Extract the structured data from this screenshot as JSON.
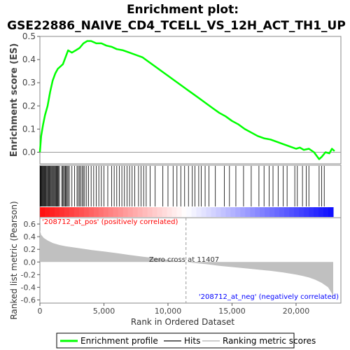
{
  "chart_data": {
    "type": "line",
    "title_line1": "Enrichment plot:",
    "title_line2": "GSE22886_NAIVE_CD4_TCELL_VS_12H_ACT_TH1_UP",
    "es_panel": {
      "ylabel": "Enrichment score (ES)",
      "ylim": [
        -0.05,
        0.5
      ],
      "yticks": [
        "0.0",
        "0.1",
        "0.2",
        "0.3",
        "0.4",
        "0.5"
      ],
      "series_name": "Enrichment profile",
      "color": "#00ff00",
      "x": [
        0,
        100,
        250,
        400,
        600,
        800,
        1000,
        1200,
        1400,
        1600,
        1800,
        2000,
        2200,
        2500,
        2800,
        3100,
        3400,
        3700,
        4000,
        4400,
        4800,
        5200,
        5600,
        6000,
        6500,
        7000,
        7500,
        8000,
        8500,
        9000,
        9500,
        10000,
        10500,
        11000,
        11500,
        12000,
        12500,
        13000,
        13500,
        14000,
        14500,
        15000,
        15500,
        16000,
        16500,
        17000,
        17500,
        18000,
        18500,
        19000,
        19500,
        20000,
        20300,
        20600,
        21000,
        21400,
        21800,
        22000,
        22300,
        22600,
        22800,
        23000
      ],
      "y": [
        0.0,
        0.07,
        0.12,
        0.16,
        0.2,
        0.26,
        0.31,
        0.34,
        0.36,
        0.37,
        0.38,
        0.41,
        0.44,
        0.43,
        0.44,
        0.45,
        0.47,
        0.48,
        0.48,
        0.47,
        0.47,
        0.46,
        0.455,
        0.445,
        0.44,
        0.43,
        0.42,
        0.41,
        0.39,
        0.37,
        0.35,
        0.33,
        0.31,
        0.29,
        0.27,
        0.25,
        0.23,
        0.21,
        0.19,
        0.17,
        0.155,
        0.135,
        0.12,
        0.1,
        0.085,
        0.07,
        0.06,
        0.055,
        0.045,
        0.035,
        0.025,
        0.015,
        0.02,
        0.01,
        0.015,
        0.0,
        -0.03,
        -0.02,
        0.0,
        -0.005,
        0.015,
        0.005
      ]
    },
    "hits": {
      "series_name": "Hits",
      "positions": [
        20,
        60,
        100,
        150,
        200,
        250,
        300,
        350,
        400,
        450,
        500,
        560,
        620,
        680,
        740,
        800,
        860,
        920,
        980,
        1040,
        1100,
        1160,
        1220,
        1280,
        1340,
        1400,
        1460,
        1520,
        1700,
        1780,
        1850,
        1920,
        1990,
        2060,
        2130,
        2200,
        2300,
        2500,
        2700,
        2900,
        3000,
        3100,
        3200,
        3300,
        3400,
        3500,
        3650,
        3800,
        4000,
        4200,
        4400,
        4600,
        4800,
        5000,
        5300,
        5600,
        5800,
        6000,
        6200,
        6400,
        6600,
        6800,
        7000,
        7200,
        7400,
        7700,
        7900,
        8100,
        8300,
        8600,
        9000,
        9600,
        10000,
        10400,
        10700,
        11000,
        11300,
        11600,
        11900,
        12100,
        12400,
        12600,
        12900,
        13200,
        13700,
        14400,
        14800,
        15300,
        15900,
        16500,
        17100,
        17500,
        17900,
        18200,
        18600,
        19000,
        19300,
        19900,
        20100,
        20500,
        20800,
        21000,
        21800,
        22000,
        22200
      ]
    },
    "metric_panel": {
      "ylabel": "Ranked list metric (Pearson)",
      "ylim": [
        -0.65,
        0.7
      ],
      "yticks": [
        "0.6",
        "0.4",
        "0.2",
        "0.0",
        "-0.2",
        "-0.4",
        "-0.6"
      ],
      "series_name": "Ranking metric scores",
      "color": "#c0c0c0",
      "x": [
        0,
        100,
        300,
        600,
        1000,
        1500,
        2000,
        3000,
        4000,
        5000,
        6000,
        7000,
        8000,
        9000,
        10000,
        11000,
        11407,
        12000,
        13000,
        14000,
        15000,
        16000,
        17000,
        18000,
        19000,
        20000,
        20500,
        21000,
        21500,
        22000,
        22500,
        22800,
        22900
      ],
      "y": [
        0.5,
        0.43,
        0.38,
        0.34,
        0.3,
        0.27,
        0.25,
        0.22,
        0.19,
        0.165,
        0.14,
        0.11,
        0.085,
        0.06,
        0.035,
        0.01,
        0.0,
        -0.015,
        -0.035,
        -0.06,
        -0.08,
        -0.1,
        -0.12,
        -0.14,
        -0.165,
        -0.2,
        -0.22,
        -0.245,
        -0.28,
        -0.33,
        -0.4,
        -0.5,
        -0.6
      ],
      "zero_cross_label": "Zero cross at 11407",
      "pos_label": "'208712_at_pos' (positively correlated)",
      "neg_label": "'208712_at_neg' (negatively correlated)",
      "pos_color": "#ff0000",
      "neg_color": "#0000ff"
    },
    "xaxis": {
      "xlabel": "Rank in Ordered Dataset",
      "xlim": [
        0,
        23500
      ],
      "xticks": [
        "0",
        "5,000",
        "10,000",
        "15,000",
        "20,000"
      ],
      "total": 22900,
      "zero_cross": 11407
    },
    "legend": {
      "placement": "bottom",
      "items": [
        "Enrichment profile",
        "Hits",
        "Ranking metric scores"
      ]
    }
  }
}
